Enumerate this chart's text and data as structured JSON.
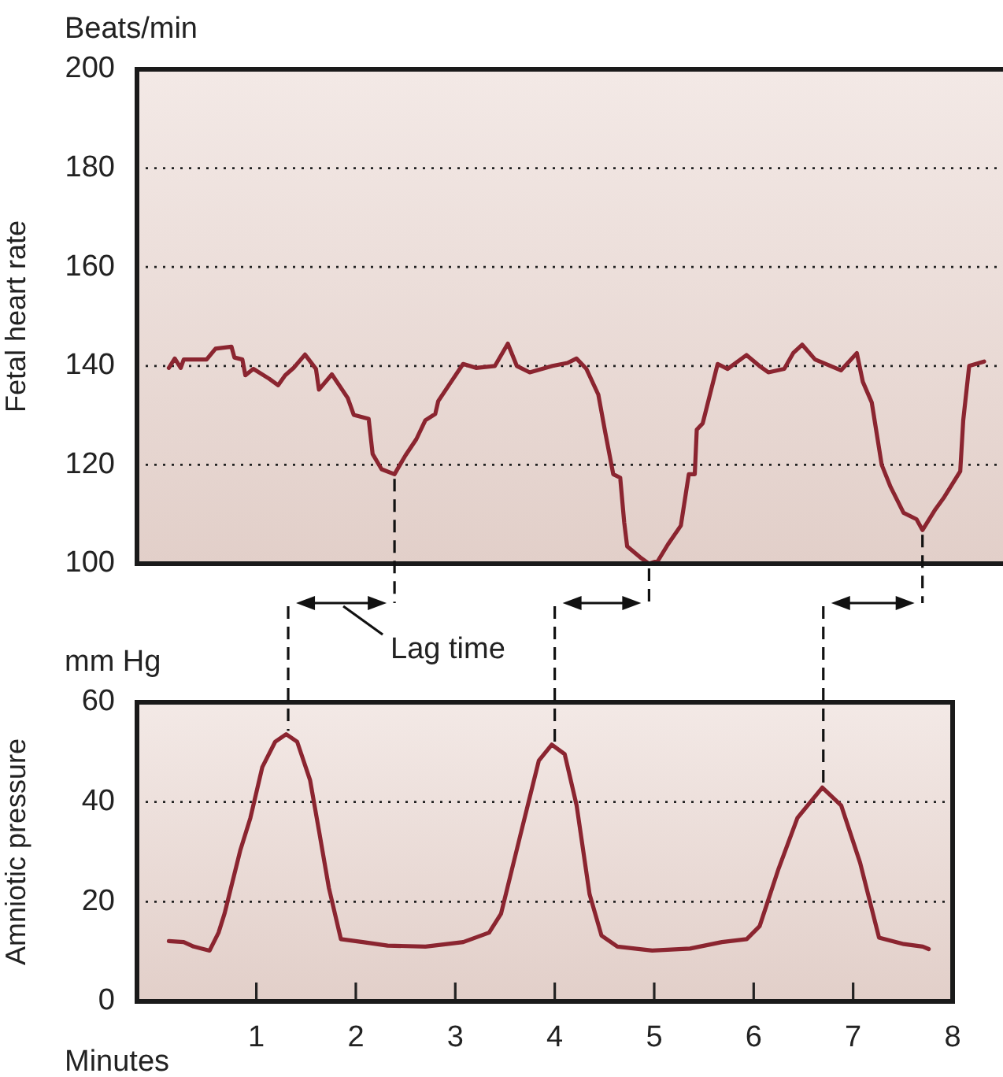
{
  "chart_data": [
    {
      "type": "line",
      "ylabel": "Fetal heart rate",
      "annotations": [
        "Beats/min"
      ],
      "xlim": [
        -0.2,
        8.51
      ],
      "xticks": [
        1,
        2,
        3,
        4,
        5,
        6,
        7,
        8
      ],
      "ylim": [
        100,
        200
      ],
      "yticks": [
        100,
        120,
        140,
        160,
        180,
        200
      ],
      "grid": "y",
      "legend": false,
      "marker": "none",
      "line_style": "solid",
      "tick_labels": "y",
      "series": [
        {
          "color": "#8b2530",
          "x": [
            0.12,
            0.18,
            0.24,
            0.27,
            0.5,
            0.59,
            0.75,
            0.78,
            0.86,
            0.89,
            0.97,
            1.13,
            1.22,
            1.29,
            1.38,
            1.49,
            1.6,
            1.63,
            1.76,
            1.92,
            1.98,
            2.13,
            2.17,
            2.26,
            2.39,
            2.5,
            2.61,
            2.7,
            2.8,
            2.83,
            2.96,
            3.08,
            3.21,
            3.4,
            3.53,
            3.62,
            3.75,
            3.98,
            4.13,
            4.22,
            4.32,
            4.44,
            4.51,
            4.59,
            4.66,
            4.7,
            4.73,
            4.86,
            4.95,
            5.04,
            5.14,
            5.27,
            5.35,
            5.41,
            5.43,
            5.49,
            5.64,
            5.74,
            5.93,
            6.06,
            6.15,
            6.31,
            6.4,
            6.49,
            6.62,
            6.88,
            7.04,
            7.1,
            7.19,
            7.29,
            7.38,
            7.51,
            7.64,
            7.7,
            7.83,
            7.92,
            8.08,
            8.11,
            8.17,
            8.32
          ],
          "values": [
            139.6,
            141.5,
            139.6,
            141.3,
            141.3,
            143.5,
            143.9,
            141.7,
            141.3,
            138.1,
            139.4,
            137.4,
            136.1,
            138.1,
            139.7,
            142.3,
            139.4,
            135.2,
            138.3,
            133.5,
            130.1,
            129.3,
            122.2,
            119.1,
            118.1,
            121.9,
            125.2,
            129,
            130.3,
            132.9,
            136.8,
            140.4,
            139.6,
            140,
            144.5,
            140,
            138.7,
            140,
            140.6,
            141.5,
            139.4,
            134.2,
            126.5,
            118.1,
            117.4,
            108.4,
            103.5,
            101.3,
            100,
            100.6,
            103.9,
            107.7,
            118.1,
            118.1,
            127.1,
            128.4,
            140.4,
            139.4,
            142.2,
            140,
            138.7,
            139.4,
            142.6,
            144.3,
            141.3,
            139.1,
            142.6,
            136.8,
            132.6,
            120,
            115.5,
            110.3,
            109,
            106.8,
            111,
            113.5,
            118.7,
            129,
            140,
            140.9
          ]
        }
      ]
    },
    {
      "type": "line",
      "ylabel": "Amniotic pressure",
      "xlabel": "Minutes",
      "annotations": [
        "mm Hg",
        "Lag time"
      ],
      "xlim": [
        -0.2,
        8
      ],
      "xticks": [
        1,
        2,
        3,
        4,
        5,
        6,
        7,
        8
      ],
      "ylim": [
        0,
        60
      ],
      "yticks": [
        0,
        20,
        40,
        60
      ],
      "grid": "y",
      "legend": false,
      "marker": "none",
      "line_style": "solid",
      "ref_lines": [
        {
          "axis": "x",
          "value": 1.32,
          "line_style": "dashed"
        },
        {
          "axis": "x",
          "value": 4.0,
          "line_style": "dashed"
        },
        {
          "axis": "x",
          "value": 6.7,
          "line_style": "dashed"
        }
      ],
      "series": [
        {
          "color": "#8b2530",
          "x": [
            0.12,
            0.27,
            0.37,
            0.53,
            0.62,
            0.68,
            0.84,
            0.94,
            1.06,
            1.19,
            1.3,
            1.41,
            1.54,
            1.63,
            1.73,
            1.85,
            2.07,
            2.32,
            2.7,
            3.08,
            3.34,
            3.46,
            3.65,
            3.84,
            3.97,
            4.1,
            4.22,
            4.35,
            4.47,
            4.63,
            4.98,
            5.36,
            5.68,
            5.93,
            6.06,
            6.25,
            6.44,
            6.69,
            6.88,
            7.07,
            7.26,
            7.51,
            7.7,
            7.76
          ],
          "values": [
            12.1,
            11.9,
            11,
            10.2,
            13.8,
            17.6,
            30.4,
            36.8,
            47,
            52.1,
            53.6,
            52.1,
            44.4,
            34.2,
            22.7,
            12.5,
            11.9,
            11.2,
            11,
            11.9,
            13.8,
            17.6,
            33,
            48.3,
            51.5,
            49.6,
            39.3,
            21.5,
            13.2,
            11,
            10.2,
            10.6,
            11.9,
            12.5,
            15.1,
            26.6,
            36.8,
            42.9,
            39.3,
            27.8,
            12.8,
            11.5,
            11,
            10.5
          ]
        }
      ]
    }
  ]
}
